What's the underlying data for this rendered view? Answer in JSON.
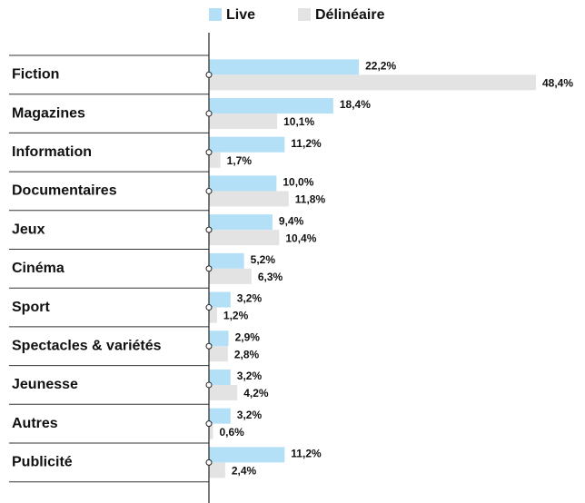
{
  "chart_data": {
    "type": "bar",
    "orientation": "horizontal",
    "categories": [
      "Fiction",
      "Magazines",
      "Information",
      "Documentaires",
      "Jeux",
      "Cinéma",
      "Sport",
      "Spectacles & variétés",
      "Jeunesse",
      "Autres",
      "Publicité"
    ],
    "series": [
      {
        "name": "Live",
        "color": "#b3e0f7",
        "values": [
          22.2,
          18.4,
          11.2,
          10.0,
          9.4,
          5.2,
          3.2,
          2.9,
          3.2,
          3.2,
          11.2
        ],
        "value_labels": [
          "22,2%",
          "18,4%",
          "11,2%",
          "10,0%",
          "9,4%",
          "5,2%",
          "3,2%",
          "2,9%",
          "3,2%",
          "3,2%",
          "11,2%"
        ]
      },
      {
        "name": "Délinéaire",
        "color": "#e3e3e3",
        "values": [
          48.4,
          10.1,
          1.7,
          11.8,
          10.4,
          6.3,
          1.2,
          2.8,
          4.2,
          0.6,
          2.4
        ],
        "value_labels": [
          "48,4%",
          "10,1%",
          "1,7%",
          "11,8%",
          "10,4%",
          "6,3%",
          "1,2%",
          "2,8%",
          "4,2%",
          "0,6%",
          "2,4%"
        ]
      }
    ],
    "legend": "top"
  }
}
